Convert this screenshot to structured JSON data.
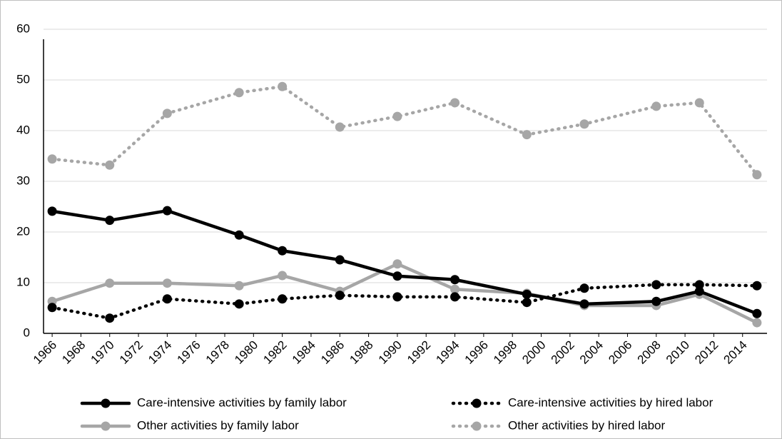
{
  "chart_data": {
    "type": "line",
    "xlim": [
      1965.4,
      2015.7
    ],
    "xticks": [
      1966,
      1968,
      1970,
      1972,
      1974,
      1976,
      1978,
      1980,
      1982,
      1984,
      1986,
      1988,
      1990,
      1992,
      1994,
      1996,
      1998,
      2000,
      2002,
      2004,
      2006,
      2008,
      2010,
      2012,
      2014
    ],
    "ylim": [
      0,
      60
    ],
    "yticks": [
      0,
      10,
      20,
      30,
      40,
      50,
      60
    ],
    "grid": true,
    "legend": "bottom",
    "x": [
      1966,
      1970,
      1974,
      1979,
      1982,
      1986,
      1990,
      1994,
      1999,
      2003,
      2008,
      2011,
      2015
    ],
    "series": [
      {
        "name": "Care-intensive activities by family labor",
        "color": "#000000",
        "line_style": "solid",
        "values": [
          24.1,
          22.3,
          24.2,
          19.4,
          16.3,
          14.5,
          11.3,
          10.6,
          7.7,
          5.8,
          6.3,
          8.3,
          3.9
        ]
      },
      {
        "name": "Care-intensive activities by hired labor",
        "color": "#000000",
        "line_style": "dotted",
        "values": [
          5.1,
          3.0,
          6.8,
          5.8,
          6.8,
          7.5,
          7.2,
          7.2,
          6.1,
          8.9,
          9.6,
          9.6,
          9.4
        ]
      },
      {
        "name": "Other activities by family labor",
        "color": "#a6a6a6",
        "line_style": "solid",
        "values": [
          6.3,
          9.9,
          9.9,
          9.4,
          11.4,
          8.3,
          13.7,
          8.7,
          7.9,
          5.5,
          5.5,
          7.7,
          2.1
        ]
      },
      {
        "name": "Other activities by hired labor",
        "color": "#a6a6a6",
        "line_style": "dotted",
        "values": [
          34.4,
          33.2,
          43.4,
          47.5,
          48.7,
          40.7,
          42.8,
          45.5,
          39.2,
          41.3,
          44.8,
          45.5,
          31.3
        ]
      }
    ]
  }
}
